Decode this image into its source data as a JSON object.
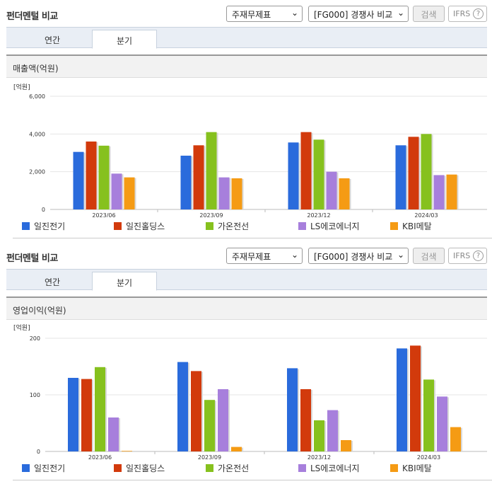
{
  "panels": [
    {
      "title": "펀더멘털 비교",
      "select1": "주재무제표",
      "select2": "[FG000] 경쟁사 비교",
      "search_label": "검색",
      "ifrs_label": "IFRS",
      "help_label": "?",
      "tabs": [
        "연간",
        "분기"
      ],
      "active_tab": "분기",
      "section_title": "매출액(억원)"
    },
    {
      "title": "펀더멘털 비교",
      "select1": "주재무제표",
      "select2": "[FG000] 경쟁사 비교",
      "search_label": "검색",
      "ifrs_label": "IFRS",
      "help_label": "?",
      "tabs": [
        "연간",
        "분기"
      ],
      "active_tab": "분기",
      "section_title": "영업이익(억원)"
    }
  ],
  "chart_data": [
    {
      "type": "bar",
      "unit_label": "[억원]",
      "categories": [
        "2023/06",
        "2023/09",
        "2023/12",
        "2024/03"
      ],
      "ylim": [
        0,
        6000
      ],
      "yticks": [
        0,
        2000,
        4000,
        6000
      ],
      "ytick_labels": [
        "0",
        "2,000",
        "4,000",
        "6,000"
      ],
      "series": [
        {
          "name": "일진전기",
          "color": "#2a6bdc",
          "values": [
            3050,
            2850,
            3550,
            3400
          ]
        },
        {
          "name": "일진홀딩스",
          "color": "#d23a0c",
          "values": [
            3600,
            3400,
            4100,
            3850
          ]
        },
        {
          "name": "가온전선",
          "color": "#86c11e",
          "values": [
            3380,
            4100,
            3700,
            4000
          ]
        },
        {
          "name": "LS에코에너지",
          "color": "#a77fdc",
          "values": [
            1900,
            1700,
            2000,
            1820
          ]
        },
        {
          "name": "KBI메탈",
          "color": "#f59b14",
          "values": [
            1700,
            1650,
            1650,
            1850
          ]
        }
      ]
    },
    {
      "type": "bar",
      "unit_label": "[억원]",
      "categories": [
        "2023/06",
        "2023/09",
        "2023/12",
        "2024/03"
      ],
      "ylim": [
        0,
        200
      ],
      "yticks": [
        0,
        100,
        200
      ],
      "ytick_labels": [
        "0",
        "100",
        "200"
      ],
      "series": [
        {
          "name": "일진전기",
          "color": "#2a6bdc",
          "values": [
            130,
            158,
            147,
            182
          ]
        },
        {
          "name": "일진홀딩스",
          "color": "#d23a0c",
          "values": [
            128,
            142,
            110,
            187
          ]
        },
        {
          "name": "가온전선",
          "color": "#86c11e",
          "values": [
            149,
            91,
            55,
            127
          ]
        },
        {
          "name": "LS에코에너지",
          "color": "#a77fdc",
          "values": [
            60,
            110,
            73,
            97
          ]
        },
        {
          "name": "KBI메탈",
          "color": "#f59b14",
          "values": [
            1,
            8,
            20,
            43
          ]
        }
      ]
    }
  ]
}
